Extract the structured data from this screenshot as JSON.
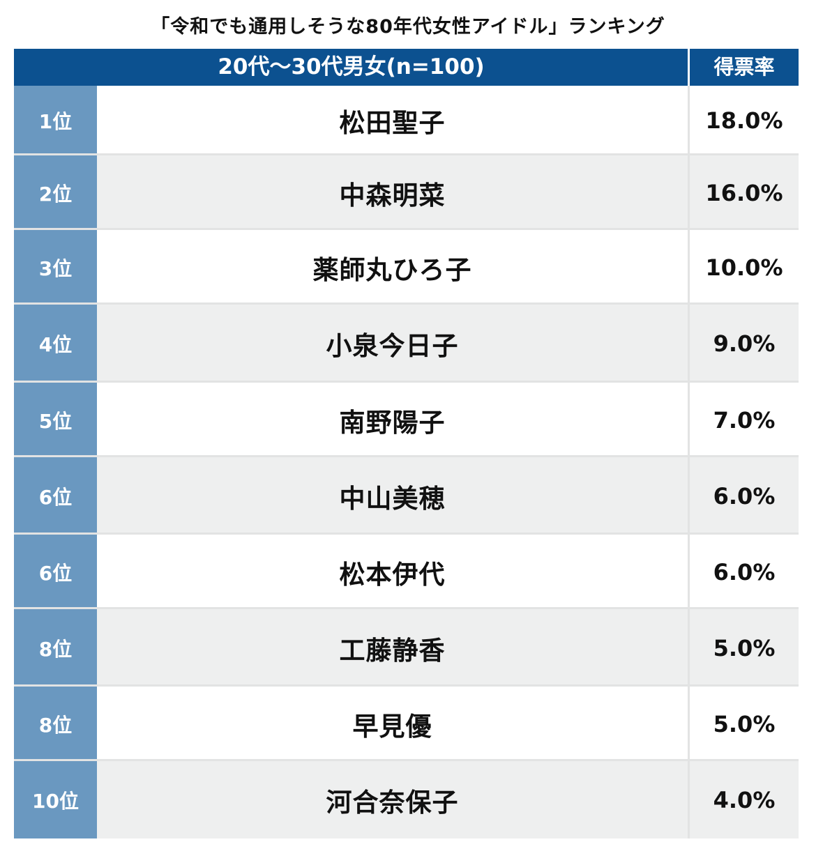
{
  "title": "「令和でも通用しそうな80年代女性アイドル」ランキング",
  "header": {
    "group_label": "20代〜30代男女(n=100)",
    "value_label": "得票率"
  },
  "colors": {
    "header_bg": "#0c5190",
    "rank_bg": "#6a98c0",
    "alt_row_bg": "#eeefef",
    "text": "#111111"
  },
  "chart_data": {
    "type": "table",
    "columns": [
      "20代〜30代男女(n=100)",
      "得票率"
    ],
    "rows": [
      {
        "rank": "1位",
        "name": "松田聖子",
        "value": "18.0%"
      },
      {
        "rank": "2位",
        "name": "中森明菜",
        "value": "16.0%"
      },
      {
        "rank": "3位",
        "name": "薬師丸ひろ子",
        "value": "10.0%"
      },
      {
        "rank": "4位",
        "name": "小泉今日子",
        "value": "9.0%"
      },
      {
        "rank": "5位",
        "name": "南野陽子",
        "value": "7.0%"
      },
      {
        "rank": "6位",
        "name": "中山美穂",
        "value": "6.0%"
      },
      {
        "rank": "6位",
        "name": "松本伊代",
        "value": "6.0%"
      },
      {
        "rank": "8位",
        "name": "工藤静香",
        "value": "5.0%"
      },
      {
        "rank": "8位",
        "name": "早見優",
        "value": "5.0%"
      },
      {
        "rank": "10位",
        "name": "河合奈保子",
        "value": "4.0%"
      }
    ]
  }
}
